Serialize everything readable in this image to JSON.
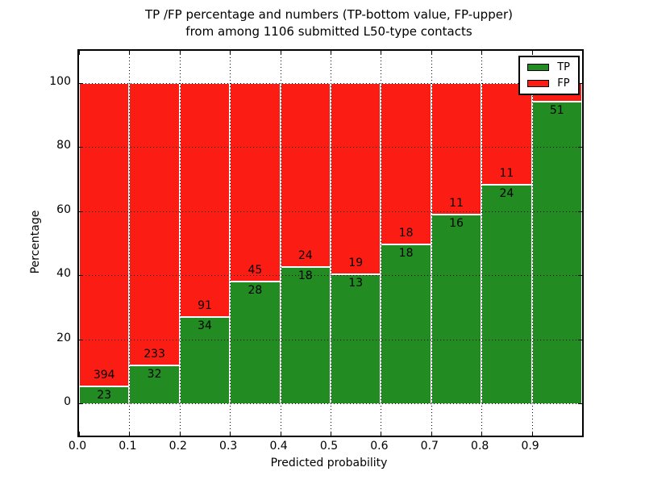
{
  "figure_title_line1": "TP /FP percentage and numbers (TP-bottom value, FP-upper)",
  "figure_title_line2": "from among 1106 submitted L50-type contacts",
  "chart_data": {
    "type": "bar",
    "subtype": "stacked-percentage",
    "title": "TP /FP percentage and numbers (TP-bottom value, FP-upper) from among 1106 submitted L50-type contacts",
    "total_submitted": 1106,
    "xlabel": "Predicted probability",
    "ylabel": "Percentage",
    "xlim": [
      0.0,
      1.0
    ],
    "ylim": [
      -10,
      110
    ],
    "grid": "dotted",
    "legend_position": "upper-right",
    "x_tick_labels": [
      "0.0",
      "0.1",
      "0.2",
      "0.3",
      "0.4",
      "0.5",
      "0.6",
      "0.7",
      "0.8",
      "0.9"
    ],
    "y_tick_values": [
      0,
      20,
      40,
      60,
      80,
      100
    ],
    "series": [
      {
        "name": "TP",
        "color": "#228b22",
        "values": [
          23,
          32,
          34,
          28,
          18,
          13,
          18,
          16,
          24,
          51
        ]
      },
      {
        "name": "FP",
        "color": "#fb1d14",
        "values": [
          394,
          233,
          91,
          45,
          24,
          19,
          18,
          11,
          11,
          null
        ]
      }
    ],
    "bars": [
      {
        "x0": 0.0,
        "x1": 0.1,
        "tp_pct": 5.52,
        "tp_label": "23",
        "fp_label": "394"
      },
      {
        "x0": 0.1,
        "x1": 0.2,
        "tp_pct": 12.08,
        "tp_label": "32",
        "fp_label": "233"
      },
      {
        "x0": 0.2,
        "x1": 0.3,
        "tp_pct": 27.2,
        "tp_label": "34",
        "fp_label": "91"
      },
      {
        "x0": 0.3,
        "x1": 0.4,
        "tp_pct": 38.36,
        "tp_label": "28",
        "fp_label": "45"
      },
      {
        "x0": 0.4,
        "x1": 0.5,
        "tp_pct": 42.86,
        "tp_label": "18",
        "fp_label": "24"
      },
      {
        "x0": 0.5,
        "x1": 0.6,
        "tp_pct": 40.63,
        "tp_label": "13",
        "fp_label": "19"
      },
      {
        "x0": 0.6,
        "x1": 0.7,
        "tp_pct": 50.0,
        "tp_label": "18",
        "fp_label": "18"
      },
      {
        "x0": 0.7,
        "x1": 0.8,
        "tp_pct": 59.26,
        "tp_label": "16",
        "fp_label": "11"
      },
      {
        "x0": 0.8,
        "x1": 0.9,
        "tp_pct": 68.57,
        "tp_label": "24",
        "fp_label": "11"
      },
      {
        "x0": 0.9,
        "x1": 1.0,
        "tp_pct": 94.44,
        "tp_label": "51",
        "fp_label": ""
      }
    ],
    "legend_entries": [
      {
        "label": "TP",
        "color": "#228b22"
      },
      {
        "label": "FP",
        "color": "#fb1d14"
      }
    ]
  },
  "colors": {
    "tp_green": "#228b22",
    "fp_red": "#fb1d14",
    "axis": "#000000",
    "background": "#ffffff"
  }
}
